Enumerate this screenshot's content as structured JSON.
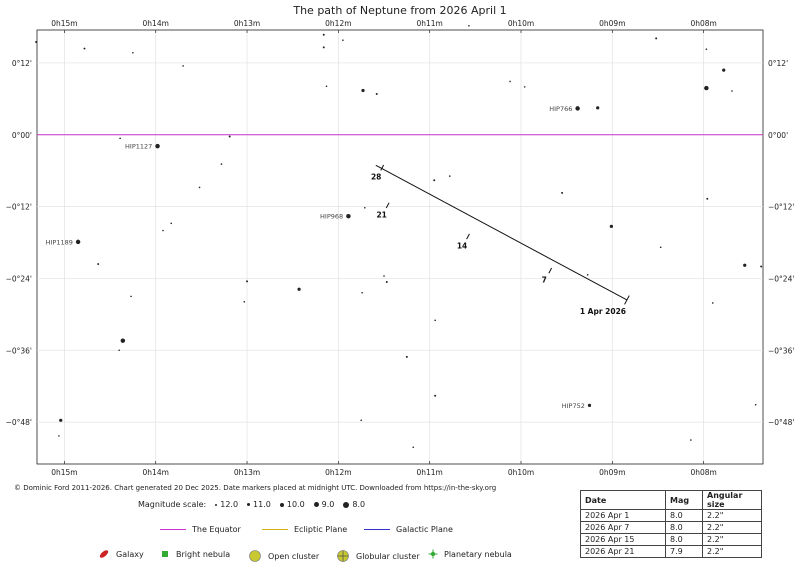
{
  "chart_data": {
    "type": "scatter",
    "title": "The path of Neptune from 2026 April 1",
    "x_unit": "right ascension (h m, offset from 0h00m)",
    "y_unit": "declination (arcmin)",
    "xlim": [
      15.3,
      7.35
    ],
    "ylim": [
      -55,
      17.5
    ],
    "x_ticks": [
      {
        "value": 15,
        "label": "0h15m"
      },
      {
        "value": 14,
        "label": "0h14m"
      },
      {
        "value": 13,
        "label": "0h13m"
      },
      {
        "value": 12,
        "label": "0h12m"
      },
      {
        "value": 11,
        "label": "0h11m"
      },
      {
        "value": 10,
        "label": "0h10m"
      },
      {
        "value": 9,
        "label": "0h09m"
      },
      {
        "value": 8,
        "label": "0h08m"
      }
    ],
    "y_ticks": [
      {
        "value": 12,
        "label": "0°12'"
      },
      {
        "value": 0,
        "label": "0°00'"
      },
      {
        "value": -12,
        "label": "−0°12'"
      },
      {
        "value": -24,
        "label": "−0°24'"
      },
      {
        "value": -36,
        "label": "−0°36'"
      },
      {
        "value": -48,
        "label": "−0°48'"
      }
    ],
    "grid": true,
    "equator_dec": 0,
    "path": {
      "start": {
        "ra": 8.84,
        "dec": -27.6
      },
      "end": {
        "ra": 11.59,
        "dec": -5.1
      },
      "markers": [
        {
          "label": "1 Apr 2026",
          "ra": 8.84,
          "dec": -27.6,
          "main": true
        },
        {
          "label": "7",
          "ra": 9.68,
          "dec": -22.7
        },
        {
          "label": "14",
          "ra": 10.58,
          "dec": -17.0
        },
        {
          "label": "21",
          "ra": 11.46,
          "dec": -11.8
        },
        {
          "label": "28",
          "ra": 11.52,
          "dec": -5.5
        }
      ]
    },
    "stars": [
      {
        "ra": 15.31,
        "dec": 15.5,
        "mag": 11.0
      },
      {
        "ra": 14.78,
        "dec": 14.4,
        "mag": 11.0
      },
      {
        "ra": 14.25,
        "dec": 13.7,
        "mag": 12.0
      },
      {
        "ra": 13.7,
        "dec": 11.5,
        "mag": 12.0
      },
      {
        "ra": 12.16,
        "dec": 16.7,
        "mag": 11.0
      },
      {
        "ra": 12.16,
        "dec": 14.6,
        "mag": 11.0
      },
      {
        "ra": 11.95,
        "dec": 15.8,
        "mag": 12.0
      },
      {
        "ra": 12.13,
        "dec": 8.1,
        "mag": 12.0
      },
      {
        "ra": 11.73,
        "dec": 7.4,
        "mag": 10.0
      },
      {
        "ra": 11.58,
        "dec": 6.8,
        "mag": 11.0
      },
      {
        "ra": 10.57,
        "dec": 18.2,
        "mag": 12.0
      },
      {
        "ra": 10.12,
        "dec": 8.9,
        "mag": 12.0
      },
      {
        "ra": 9.96,
        "dec": 8.0,
        "mag": 12.0
      },
      {
        "ra": 9.38,
        "dec": 4.4,
        "mag": 9.0,
        "name": "HIP766"
      },
      {
        "ra": 9.16,
        "dec": 4.5,
        "mag": 10.0
      },
      {
        "ra": 8.52,
        "dec": 16.1,
        "mag": 11.0
      },
      {
        "ra": 7.97,
        "dec": 14.3,
        "mag": 12.0
      },
      {
        "ra": 7.78,
        "dec": 10.8,
        "mag": 10.0
      },
      {
        "ra": 7.97,
        "dec": 7.8,
        "mag": 9.0
      },
      {
        "ra": 7.69,
        "dec": 7.3,
        "mag": 12.0
      },
      {
        "ra": 14.39,
        "dec": -0.6,
        "mag": 12.0
      },
      {
        "ra": 13.98,
        "dec": -1.9,
        "mag": 9.0,
        "name": "HIP1127"
      },
      {
        "ra": 13.19,
        "dec": -0.3,
        "mag": 11.0
      },
      {
        "ra": 13.28,
        "dec": -4.9,
        "mag": 12.0
      },
      {
        "ra": 13.52,
        "dec": -8.8,
        "mag": 12.0
      },
      {
        "ra": 13.92,
        "dec": -16.0,
        "mag": 12.0
      },
      {
        "ra": 13.83,
        "dec": -14.8,
        "mag": 12.0
      },
      {
        "ra": 14.85,
        "dec": -17.9,
        "mag": 9.0,
        "name": "HIP1189"
      },
      {
        "ra": 14.63,
        "dec": -21.6,
        "mag": 11.0
      },
      {
        "ra": 11.89,
        "dec": -13.6,
        "mag": 9.0,
        "name": "HIP968"
      },
      {
        "ra": 11.71,
        "dec": -12.2,
        "mag": 12.0
      },
      {
        "ra": 10.95,
        "dec": -7.6,
        "mag": 11.0
      },
      {
        "ra": 10.78,
        "dec": -6.9,
        "mag": 12.0
      },
      {
        "ra": 9.55,
        "dec": -9.7,
        "mag": 11.0
      },
      {
        "ra": 9.01,
        "dec": -15.3,
        "mag": 10.0
      },
      {
        "ra": 8.47,
        "dec": -18.8,
        "mag": 12.0
      },
      {
        "ra": 7.96,
        "dec": -10.7,
        "mag": 11.0
      },
      {
        "ra": 7.55,
        "dec": -21.8,
        "mag": 10.0
      },
      {
        "ra": 7.37,
        "dec": -22.0,
        "mag": 11.0
      },
      {
        "ra": 9.27,
        "dec": -23.4,
        "mag": 12.0
      },
      {
        "ra": 7.9,
        "dec": -28.1,
        "mag": 12.0
      },
      {
        "ra": 14.27,
        "dec": -27.0,
        "mag": 12.0
      },
      {
        "ra": 13.0,
        "dec": -24.5,
        "mag": 11.0
      },
      {
        "ra": 13.03,
        "dec": -27.9,
        "mag": 12.0
      },
      {
        "ra": 12.43,
        "dec": -25.8,
        "mag": 10.0
      },
      {
        "ra": 11.74,
        "dec": -26.4,
        "mag": 12.0
      },
      {
        "ra": 11.5,
        "dec": -23.6,
        "mag": 12.0
      },
      {
        "ra": 11.47,
        "dec": -24.6,
        "mag": 11.0
      },
      {
        "ra": 10.94,
        "dec": -31.0,
        "mag": 12.0
      },
      {
        "ra": 14.4,
        "dec": -36.0,
        "mag": 12.0
      },
      {
        "ra": 14.36,
        "dec": -34.4,
        "mag": 9.0
      },
      {
        "ra": 11.25,
        "dec": -37.1,
        "mag": 11.0
      },
      {
        "ra": 10.94,
        "dec": -43.6,
        "mag": 11.0
      },
      {
        "ra": 15.04,
        "dec": -47.7,
        "mag": 10.0
      },
      {
        "ra": 15.06,
        "dec": -50.3,
        "mag": 12.0
      },
      {
        "ra": 11.75,
        "dec": -47.7,
        "mag": 12.0
      },
      {
        "ra": 11.18,
        "dec": -52.2,
        "mag": 12.0
      },
      {
        "ra": 9.25,
        "dec": -45.2,
        "mag": 10.0,
        "name": "HIP752"
      },
      {
        "ra": 8.14,
        "dec": -51.0,
        "mag": 12.0
      },
      {
        "ra": 7.43,
        "dec": -45.1,
        "mag": 12.0
      }
    ]
  },
  "footer": {
    "copyright": "© Dominic Ford 2011-2026. Chart generated 20 Dec 2025. Date markers placed at midnight UTC. Downloaded from https://in-the-sky.org"
  },
  "magnitude_scale": {
    "label": "Magnitude scale:",
    "items": [
      "12.0",
      "11.0",
      "10.0",
      "9.0",
      "8.0"
    ]
  },
  "planes": [
    {
      "label": "The Equator",
      "color": "#cc33cc"
    },
    {
      "label": "Ecliptic Plane",
      "color": "#d4b020"
    },
    {
      "label": "Galactic Plane",
      "color": "#3333cc"
    }
  ],
  "object_legend": [
    {
      "label": "Galaxy",
      "icon": "galaxy-icon",
      "color": "#cc2222"
    },
    {
      "label": "Bright nebula",
      "icon": "bright-nebula-icon",
      "color": "#33aa33"
    },
    {
      "label": "Open cluster",
      "icon": "open-cluster-icon",
      "color": "#c8c830"
    },
    {
      "label": "Globular cluster",
      "icon": "globular-cluster-icon",
      "color": "#c8c830"
    },
    {
      "label": "Planetary nebula",
      "icon": "planetary-nebula-icon",
      "color": "#33aa33"
    }
  ],
  "ephemeris": {
    "headers": [
      "Date",
      "Mag",
      "Angular size"
    ],
    "rows": [
      [
        "2026 Apr 1",
        "8.0",
        "2.2\""
      ],
      [
        "2026 Apr 7",
        "8.0",
        "2.2\""
      ],
      [
        "2026 Apr 15",
        "8.0",
        "2.2\""
      ],
      [
        "2026 Apr 21",
        "7.9",
        "2.2\""
      ]
    ]
  }
}
